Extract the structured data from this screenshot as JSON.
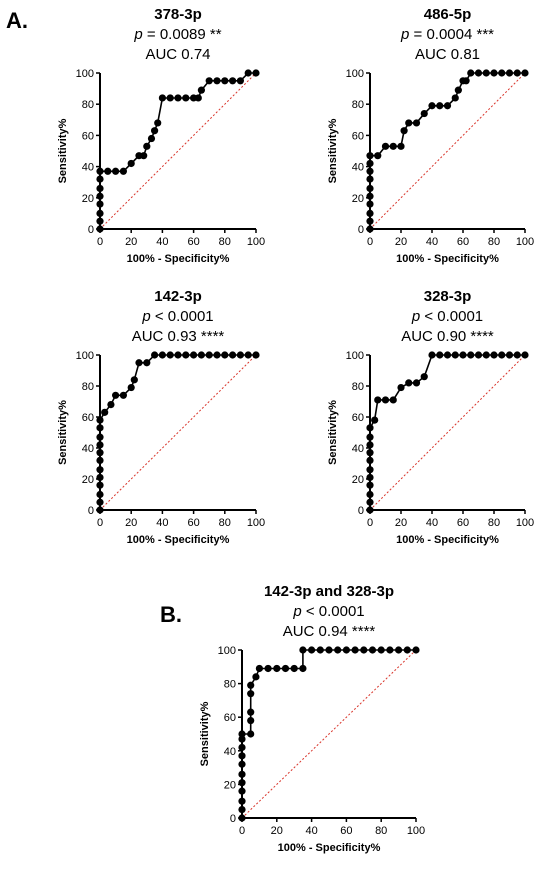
{
  "figure": {
    "panel_labels": {
      "a": "A.",
      "b": "B."
    }
  },
  "chart_data": [
    {
      "type": "line",
      "title": "378-3p",
      "p_text": "= 0.0089 **",
      "auc_text": "AUC 0.74",
      "xlabel": "100% - Specificity%",
      "ylabel": "Sensitivity%",
      "xlim": [
        0,
        100
      ],
      "ylim": [
        0,
        100
      ],
      "xticks": [
        "0",
        "20",
        "40",
        "60",
        "80",
        "100"
      ],
      "yticks": [
        "0",
        "20",
        "40",
        "60",
        "80",
        "100"
      ],
      "x": [
        0,
        0,
        0,
        0,
        0,
        0,
        0,
        0,
        5,
        10,
        15,
        20,
        25,
        28,
        30,
        33,
        35,
        37,
        40,
        45,
        50,
        55,
        60,
        63,
        65,
        70,
        75,
        80,
        85,
        90,
        95,
        100
      ],
      "y": [
        0,
        5,
        10,
        16,
        21,
        26,
        32,
        37,
        37,
        37,
        37,
        42,
        47,
        47,
        53,
        58,
        63,
        68,
        84,
        84,
        84,
        84,
        84,
        84,
        89,
        95,
        95,
        95,
        95,
        95,
        100,
        100
      ],
      "reference_line": {
        "x": [
          0,
          100
        ],
        "y": [
          0,
          100
        ],
        "color": "#d9352b"
      }
    },
    {
      "type": "line",
      "title": "486-5p",
      "p_text": "= 0.0004 ***",
      "auc_text": "AUC 0.81",
      "xlabel": "100% - Specificity%",
      "ylabel": "Sensitivity%",
      "xlim": [
        0,
        100
      ],
      "ylim": [
        0,
        100
      ],
      "xticks": [
        "0",
        "20",
        "40",
        "60",
        "80",
        "100"
      ],
      "yticks": [
        "0",
        "20",
        "40",
        "60",
        "80",
        "100"
      ],
      "x": [
        0,
        0,
        0,
        0,
        0,
        0,
        0,
        0,
        0,
        0,
        5,
        10,
        15,
        20,
        22,
        25,
        30,
        35,
        40,
        45,
        50,
        55,
        57,
        60,
        62,
        65,
        70,
        75,
        80,
        85,
        90,
        95,
        100
      ],
      "y": [
        0,
        5,
        10,
        16,
        21,
        26,
        32,
        37,
        42,
        47,
        47,
        53,
        53,
        53,
        63,
        68,
        68,
        74,
        79,
        79,
        79,
        84,
        89,
        95,
        95,
        100,
        100,
        100,
        100,
        100,
        100,
        100,
        100
      ],
      "reference_line": {
        "x": [
          0,
          100
        ],
        "y": [
          0,
          100
        ],
        "color": "#d9352b"
      }
    },
    {
      "type": "line",
      "title": "142-3p",
      "p_text": "< 0.0001",
      "auc_text": "AUC 0.93 ****",
      "xlabel": "100% - Specificity%",
      "ylabel": "Sensitivity%",
      "xlim": [
        0,
        100
      ],
      "ylim": [
        0,
        100
      ],
      "xticks": [
        "0",
        "20",
        "40",
        "60",
        "80",
        "100"
      ],
      "yticks": [
        "0",
        "20",
        "40",
        "60",
        "80",
        "100"
      ],
      "x": [
        0,
        0,
        0,
        0,
        0,
        0,
        0,
        0,
        0,
        0,
        0,
        0,
        3,
        7,
        10,
        15,
        20,
        22,
        25,
        30,
        35,
        40,
        45,
        50,
        55,
        60,
        65,
        70,
        75,
        80,
        85,
        90,
        95,
        100
      ],
      "y": [
        0,
        5,
        10,
        16,
        21,
        26,
        32,
        37,
        42,
        47,
        53,
        58,
        63,
        68,
        74,
        74,
        79,
        84,
        95,
        95,
        100,
        100,
        100,
        100,
        100,
        100,
        100,
        100,
        100,
        100,
        100,
        100,
        100,
        100
      ],
      "reference_line": {
        "x": [
          0,
          100
        ],
        "y": [
          0,
          100
        ],
        "color": "#d9352b"
      }
    },
    {
      "type": "line",
      "title": "328-3p",
      "p_text": "< 0.0001",
      "auc_text": "AUC 0.90 ****",
      "xlabel": "100% - Specificity%",
      "ylabel": "Sensitivity%",
      "xlim": [
        0,
        100
      ],
      "ylim": [
        0,
        100
      ],
      "xticks": [
        "0",
        "20",
        "40",
        "60",
        "80",
        "100"
      ],
      "yticks": [
        "0",
        "20",
        "40",
        "60",
        "80",
        "100"
      ],
      "x": [
        0,
        0,
        0,
        0,
        0,
        0,
        0,
        0,
        0,
        0,
        0,
        3,
        5,
        10,
        15,
        20,
        25,
        30,
        35,
        40,
        45,
        50,
        55,
        60,
        65,
        70,
        75,
        80,
        85,
        90,
        95,
        100
      ],
      "y": [
        0,
        5,
        10,
        16,
        21,
        26,
        32,
        37,
        42,
        47,
        53,
        58,
        71,
        71,
        71,
        79,
        82,
        82,
        86,
        100,
        100,
        100,
        100,
        100,
        100,
        100,
        100,
        100,
        100,
        100,
        100,
        100
      ],
      "reference_line": {
        "x": [
          0,
          100
        ],
        "y": [
          0,
          100
        ],
        "color": "#d9352b"
      }
    },
    {
      "type": "line",
      "title": "142-3p and 328-3p",
      "p_text": "< 0.0001",
      "auc_text": "AUC 0.94 ****",
      "xlabel": "100% - Specificity%",
      "ylabel": "Sensitivity%",
      "xlim": [
        0,
        100
      ],
      "ylim": [
        0,
        100
      ],
      "xticks": [
        "0",
        "20",
        "40",
        "60",
        "80",
        "100"
      ],
      "yticks": [
        "0",
        "20",
        "40",
        "60",
        "80",
        "100"
      ],
      "x": [
        0,
        0,
        0,
        0,
        0,
        0,
        0,
        0,
        0,
        0,
        0,
        5,
        5,
        5,
        5,
        5,
        8,
        10,
        15,
        20,
        25,
        30,
        35,
        35,
        40,
        45,
        50,
        55,
        60,
        65,
        70,
        75,
        80,
        85,
        90,
        95,
        100
      ],
      "y": [
        0,
        5,
        10,
        16,
        21,
        26,
        32,
        37,
        42,
        47,
        50,
        50,
        58,
        63,
        74,
        79,
        84,
        89,
        89,
        89,
        89,
        89,
        89,
        100,
        100,
        100,
        100,
        100,
        100,
        100,
        100,
        100,
        100,
        100,
        100,
        100,
        100
      ],
      "reference_line": {
        "x": [
          0,
          100
        ],
        "y": [
          0,
          100
        ],
        "color": "#d9352b"
      }
    }
  ]
}
